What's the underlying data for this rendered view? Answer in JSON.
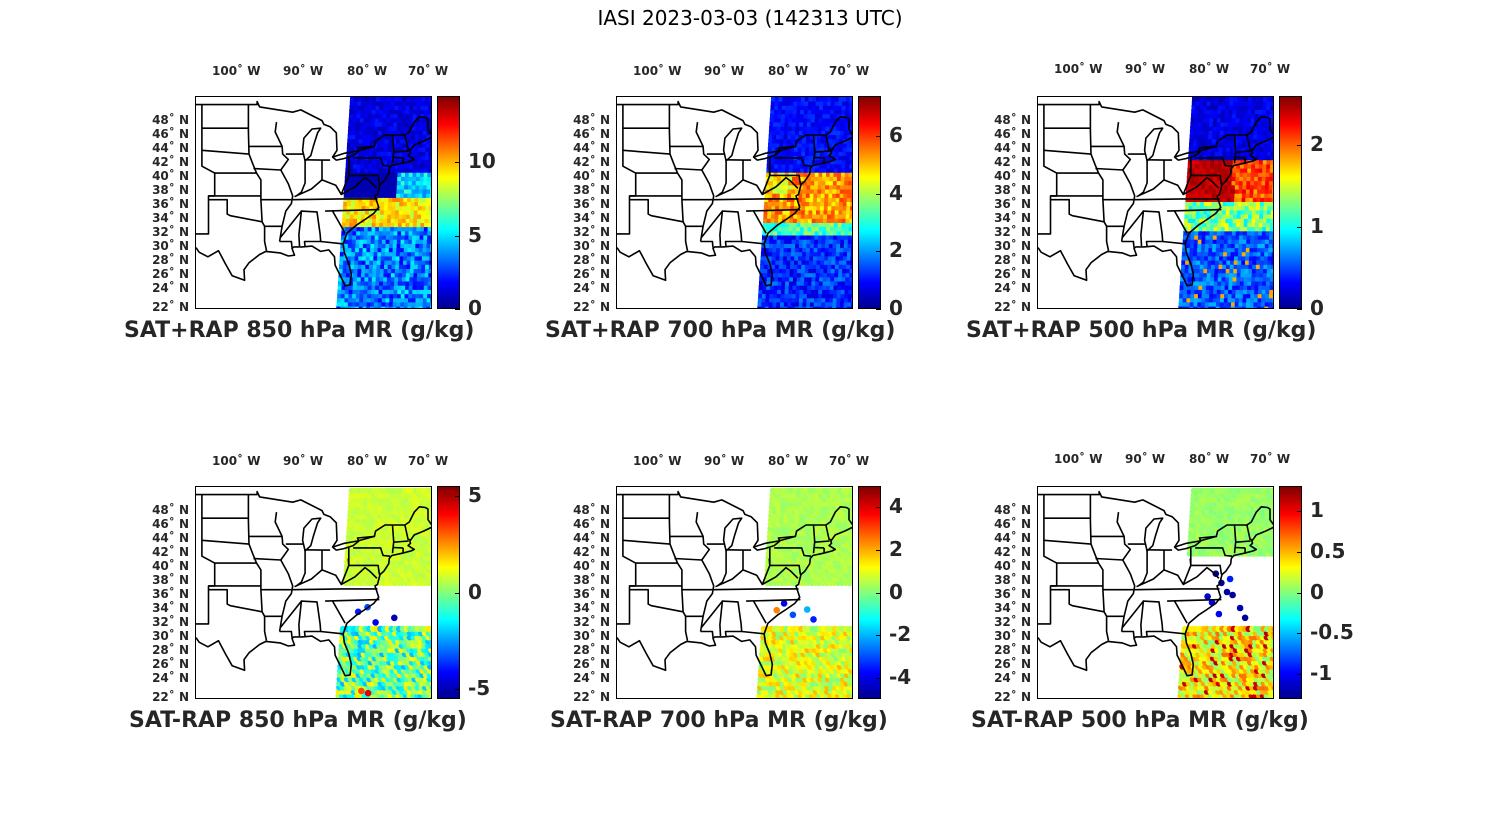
{
  "figure": {
    "title": "IASI 2023-03-03 (142313 UTC)"
  },
  "axes": {
    "lon_labels": [
      "100˚ W",
      "90˚ W",
      "80˚ W",
      "70˚ W"
    ],
    "lat_labels": [
      "48˚ N",
      "46˚ N",
      "44˚ N",
      "42˚ N",
      "40˚ N",
      "38˚ N",
      "36˚ N",
      "34˚ N",
      "32˚ N",
      "30˚ N",
      "28˚ N",
      "26˚ N",
      "24˚ N",
      "22˚ N"
    ]
  },
  "colormap": "jet",
  "panels": [
    {
      "title": "SAT+RAP 850 hPa MR (g/kg)",
      "field": "sum",
      "level": "850 hPa",
      "clim": [
        0,
        14.5
      ],
      "colorbar_ticks": [
        "0",
        "5",
        "10"
      ],
      "colorbar_values": [
        0,
        5,
        10
      ]
    },
    {
      "title": "SAT+RAP 700 hPa MR (g/kg)",
      "field": "sum",
      "level": "700 hPa",
      "clim": [
        0,
        7.4
      ],
      "colorbar_ticks": [
        "0",
        "2",
        "4",
        "6"
      ],
      "colorbar_values": [
        0,
        2,
        4,
        6
      ]
    },
    {
      "title": "SAT+RAP 500 hPa MR (g/kg)",
      "field": "sum",
      "level": "500 hPa",
      "clim": [
        0,
        2.6
      ],
      "colorbar_ticks": [
        "0",
        "1",
        "2"
      ],
      "colorbar_values": [
        0,
        1,
        2
      ]
    },
    {
      "title": "SAT-RAP 850 hPa MR (g/kg)",
      "field": "diff",
      "level": "850 hPa",
      "clim": [
        -5.5,
        5.5
      ],
      "colorbar_ticks": [
        "-5",
        "0",
        "5"
      ],
      "colorbar_values": [
        -5,
        0,
        5
      ]
    },
    {
      "title": "SAT-RAP 700 hPa MR (g/kg)",
      "field": "diff",
      "level": "700 hPa",
      "clim": [
        -5,
        5
      ],
      "colorbar_ticks": [
        "-4",
        "-2",
        "0",
        "2",
        "4"
      ],
      "colorbar_values": [
        -4,
        -2,
        0,
        2,
        4
      ]
    },
    {
      "title": "SAT-RAP 500 hPa MR (g/kg)",
      "field": "diff",
      "level": "500 hPa",
      "clim": [
        -1.3,
        1.3
      ],
      "colorbar_ticks": [
        "-1",
        "-0.5",
        "0",
        "0.5",
        "1"
      ],
      "colorbar_values": [
        -1,
        -0.5,
        0,
        0.5,
        1
      ]
    }
  ]
}
